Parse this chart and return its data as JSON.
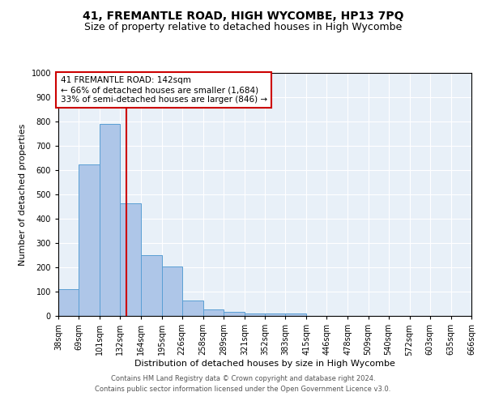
{
  "title": "41, FREMANTLE ROAD, HIGH WYCOMBE, HP13 7PQ",
  "subtitle": "Size of property relative to detached houses in High Wycombe",
  "xlabel": "Distribution of detached houses by size in High Wycombe",
  "ylabel": "Number of detached properties",
  "bin_edges": [
    38,
    69,
    101,
    132,
    164,
    195,
    226,
    258,
    289,
    321,
    352,
    383,
    415,
    446,
    478,
    509,
    540,
    572,
    603,
    635,
    666
  ],
  "bar_heights": [
    110,
    625,
    790,
    465,
    250,
    205,
    63,
    28,
    18,
    10,
    10,
    10,
    0,
    0,
    0,
    0,
    0,
    0,
    0,
    0
  ],
  "bar_color": "#aec6e8",
  "bar_edge_color": "#5a9fd4",
  "property_size": 142,
  "red_line_color": "#cc0000",
  "annotation_text": "41 FREMANTLE ROAD: 142sqm\n← 66% of detached houses are smaller (1,684)\n33% of semi-detached houses are larger (846) →",
  "annotation_box_color": "#ffffff",
  "annotation_border_color": "#cc0000",
  "ylim": [
    0,
    1000
  ],
  "yticks": [
    0,
    100,
    200,
    300,
    400,
    500,
    600,
    700,
    800,
    900,
    1000
  ],
  "bg_color": "#e8f0f8",
  "footer_line1": "Contains HM Land Registry data © Crown copyright and database right 2024.",
  "footer_line2": "Contains public sector information licensed under the Open Government Licence v3.0.",
  "title_fontsize": 10,
  "subtitle_fontsize": 9,
  "annotation_fontsize": 7.5,
  "axis_label_fontsize": 8,
  "tick_fontsize": 7
}
